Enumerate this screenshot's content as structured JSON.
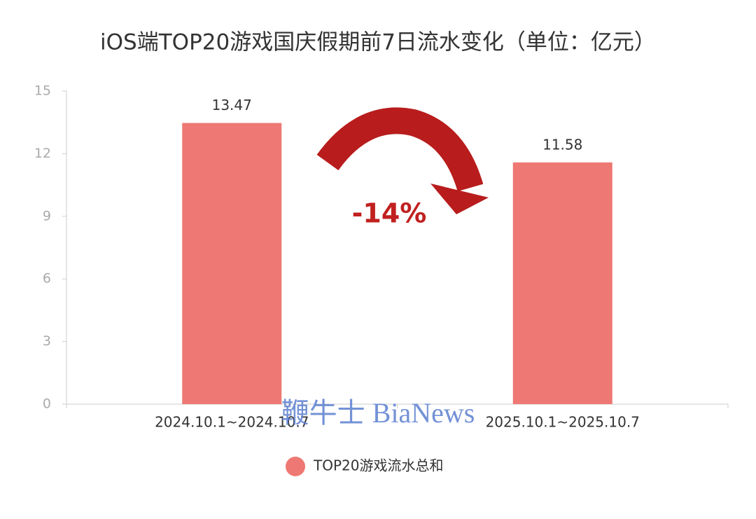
{
  "chart_data": {
    "type": "bar",
    "title": "iOS端TOP20游戏国庆假期前7日流水变化（单位：亿元）",
    "categories": [
      "2024.10.1~2024.10.7",
      "2025.10.1~2025.10.7"
    ],
    "series": [
      {
        "name": "TOP20游戏流水总和",
        "color": "#ee7873",
        "values": [
          13.47,
          11.58
        ]
      }
    ],
    "ylim": [
      0,
      15
    ],
    "yticks": [
      0,
      3,
      6,
      9,
      12,
      15
    ],
    "annotation": "-14%",
    "watermark": "鞭牛士 BiaNews"
  }
}
